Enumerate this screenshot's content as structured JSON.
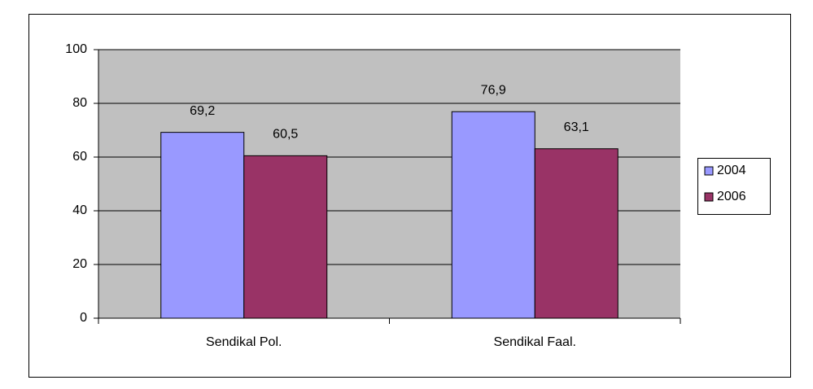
{
  "chart_data": {
    "type": "bar",
    "categories": [
      "Sendikal Pol.",
      "Sendikal Faal."
    ],
    "series": [
      {
        "name": "2004",
        "color": "#9999ff",
        "values": [
          69.2,
          76.9
        ],
        "value_labels": [
          "69,2",
          "76,9"
        ]
      },
      {
        "name": "2006",
        "color": "#993366",
        "values": [
          60.5,
          63.1
        ],
        "value_labels": [
          "60,5",
          "63,1"
        ]
      }
    ],
    "ylim": [
      0,
      100
    ],
    "yticks": [
      0,
      20,
      40,
      60,
      80,
      100
    ],
    "grid": true,
    "legend": "right",
    "plot_background": "#c0c0c0"
  }
}
